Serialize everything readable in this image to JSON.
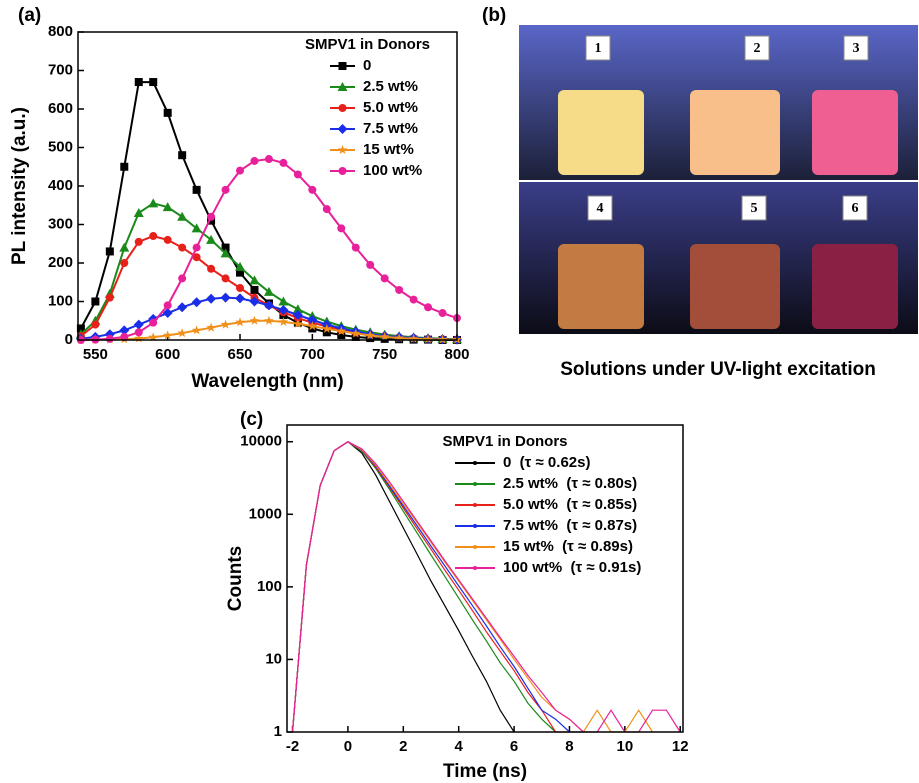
{
  "chart_data": [
    {
      "type": "line",
      "panel_label": "(a)",
      "xlabel": "Wavelength (nm)",
      "ylabel": "PL intensity (a.u.)",
      "legend_title": "SMPV1 in Donors",
      "legend": "upper right",
      "x": [
        540,
        550,
        560,
        570,
        580,
        590,
        600,
        610,
        620,
        630,
        640,
        650,
        660,
        670,
        680,
        690,
        700,
        710,
        720,
        730,
        740,
        750,
        760,
        770,
        780,
        790,
        800
      ],
      "series": [
        {
          "name": "0",
          "color": "#000000",
          "marker": "square",
          "values": [
            30,
            100,
            230,
            450,
            670,
            670,
            590,
            480,
            390,
            310,
            240,
            175,
            130,
            95,
            65,
            45,
            30,
            20,
            13,
            8,
            5,
            3,
            2,
            1,
            1,
            0,
            0
          ]
        },
        {
          "name": "2.5 wt%",
          "color": "#1a8a1a",
          "marker": "triangle",
          "values": [
            15,
            50,
            120,
            240,
            330,
            355,
            345,
            320,
            290,
            260,
            225,
            190,
            155,
            125,
            100,
            80,
            62,
            48,
            36,
            27,
            20,
            14,
            10,
            7,
            5,
            3,
            2
          ]
        },
        {
          "name": "5.0 wt%",
          "color": "#e8201a",
          "marker": "circle",
          "values": [
            10,
            40,
            110,
            200,
            255,
            270,
            260,
            240,
            215,
            185,
            160,
            135,
            110,
            90,
            72,
            57,
            45,
            35,
            26,
            19,
            14,
            10,
            7,
            5,
            3,
            2,
            1
          ]
        },
        {
          "name": "7.5 wt%",
          "color": "#1a2ee8",
          "marker": "diamond",
          "values": [
            3,
            8,
            15,
            25,
            40,
            55,
            70,
            85,
            98,
            107,
            110,
            108,
            100,
            90,
            78,
            65,
            52,
            40,
            30,
            22,
            15,
            10,
            7,
            5,
            3,
            2,
            1
          ]
        },
        {
          "name": "15 wt%",
          "color": "#f0901a",
          "marker": "star",
          "values": [
            0,
            1,
            1,
            2,
            4,
            7,
            12,
            18,
            25,
            32,
            40,
            46,
            50,
            50,
            47,
            42,
            36,
            29,
            23,
            17,
            12,
            8,
            5,
            3,
            2,
            1,
            1
          ]
        },
        {
          "name": "100 wt%",
          "color": "#e8209a",
          "marker": "circle",
          "values": [
            0,
            1,
            3,
            8,
            20,
            45,
            90,
            160,
            240,
            320,
            390,
            440,
            465,
            470,
            460,
            430,
            390,
            340,
            290,
            240,
            195,
            160,
            130,
            105,
            85,
            70,
            57
          ]
        }
      ],
      "xlim": [
        538,
        800
      ],
      "ylim": [
        0,
        800
      ],
      "xticks": [
        550,
        600,
        650,
        700,
        750,
        800
      ],
      "yticks": [
        0,
        100,
        200,
        300,
        400,
        500,
        600,
        700,
        800
      ]
    },
    {
      "type": "line",
      "panel_label": "(c)",
      "xlabel": "Time (ns)",
      "ylabel": "Counts",
      "legend_title": "SMPV1 in Donors",
      "legend": "upper right",
      "log_y": true,
      "x": [
        -2,
        -1.5,
        -1,
        -0.5,
        0,
        0.5,
        1,
        1.5,
        2,
        2.5,
        3,
        3.5,
        4,
        4.5,
        5,
        5.5,
        6,
        6.5,
        7,
        7.5,
        8,
        8.5,
        9,
        9.5,
        10,
        10.5,
        11,
        11.5,
        12
      ],
      "series": [
        {
          "name": "0  (τ ≈ 0.62s)",
          "color": "#000000",
          "values": [
            1,
            200,
            2500,
            7500,
            10000,
            7000,
            3500,
            1500,
            650,
            280,
            120,
            55,
            25,
            11,
            5,
            2,
            1,
            null,
            null,
            null,
            null,
            null,
            null,
            null,
            null,
            null,
            null,
            null,
            null
          ]
        },
        {
          "name": "2.5 wt%  (τ ≈ 0.80s)",
          "color": "#1a8a1a",
          "values": [
            1,
            200,
            2500,
            7500,
            10000,
            7400,
            4300,
            2200,
            1100,
            550,
            275,
            140,
            70,
            35,
            18,
            9,
            5,
            2.5,
            1.5,
            1,
            null,
            null,
            null,
            null,
            null,
            null,
            null,
            null,
            null
          ]
        },
        {
          "name": "5.0 wt%  (τ ≈ 0.85s)",
          "color": "#e8201a",
          "values": [
            1,
            200,
            2500,
            7500,
            10000,
            7600,
            4500,
            2350,
            1220,
            630,
            330,
            170,
            90,
            47,
            24,
            13,
            7,
            3.5,
            2,
            1,
            1,
            null,
            null,
            null,
            null,
            null,
            null,
            null,
            null
          ]
        },
        {
          "name": "7.5 wt%  (τ ≈ 0.87s)",
          "color": "#1a2ee8",
          "values": [
            1,
            200,
            2500,
            7500,
            10000,
            7700,
            4650,
            2450,
            1300,
            690,
            365,
            195,
            103,
            55,
            29,
            15,
            8,
            4,
            2,
            1.5,
            1,
            1,
            null,
            null,
            null,
            null,
            null,
            null,
            null
          ]
        },
        {
          "name": "15 wt%  (τ ≈ 0.89s)",
          "color": "#f0901a",
          "values": [
            1,
            200,
            2500,
            7500,
            10000,
            7800,
            4800,
            2600,
            1400,
            760,
            410,
            220,
            120,
            65,
            35,
            19,
            10,
            5.5,
            3,
            2,
            1.5,
            1,
            2,
            1,
            1,
            2,
            1,
            null,
            null
          ]
        },
        {
          "name": "100 wt%  (τ ≈ 0.91s)",
          "color": "#e8209a",
          "values": [
            1,
            200,
            2500,
            7500,
            10000,
            8000,
            5000,
            2800,
            1500,
            800,
            430,
            230,
            125,
            68,
            37,
            20,
            11,
            6,
            3.5,
            2,
            1.5,
            1,
            1,
            2,
            1,
            1,
            2,
            2,
            1
          ]
        }
      ],
      "xlim": [
        -2.2,
        12.1
      ],
      "ylim": [
        1,
        17000
      ],
      "xticks": [
        -2,
        0,
        2,
        4,
        6,
        8,
        10,
        12
      ],
      "yticks": [
        1,
        10,
        100,
        1000,
        10000
      ]
    }
  ],
  "photo": {
    "panel_label": "(b)",
    "vial_labels": [
      "1",
      "2",
      "3",
      "4",
      "5",
      "6"
    ],
    "caption": "Solutions under UV-light excitation"
  }
}
